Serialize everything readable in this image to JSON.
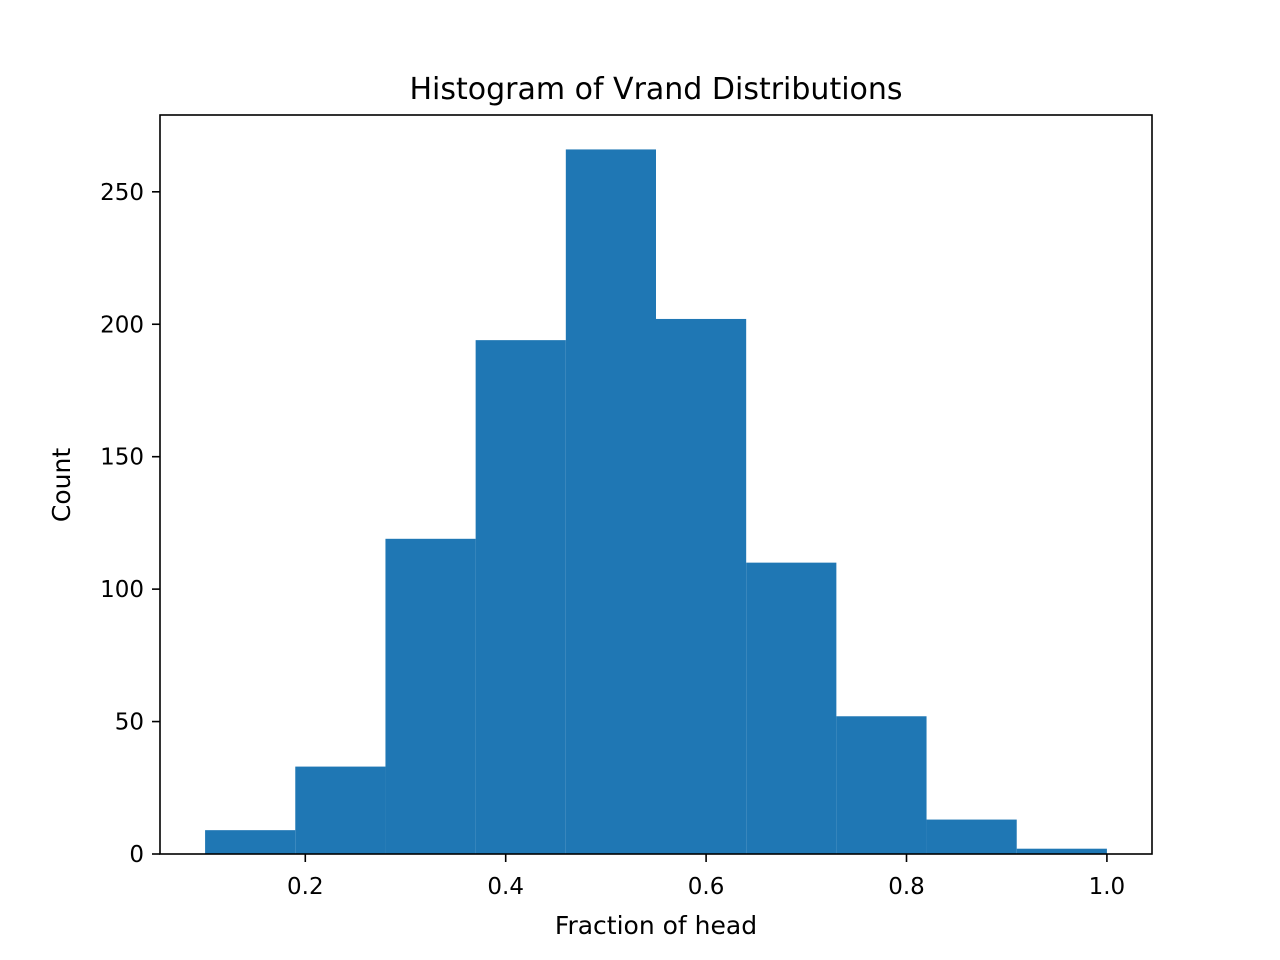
{
  "chart_data": {
    "type": "bar",
    "title": "Histogram of Vrand Distributions",
    "xlabel": "Fraction of head",
    "ylabel": "Count",
    "xlim": [
      0.055,
      1.045
    ],
    "ylim": [
      0,
      279
    ],
    "x_ticks": [
      "0.2",
      "0.4",
      "0.6",
      "0.8",
      "1.0"
    ],
    "x_tick_values": [
      0.2,
      0.4,
      0.6,
      0.8,
      1.0
    ],
    "y_ticks": [
      "0",
      "50",
      "100",
      "150",
      "200",
      "250"
    ],
    "y_tick_values": [
      0,
      50,
      100,
      150,
      200,
      250
    ],
    "bin_edges": [
      0.1,
      0.19,
      0.28,
      0.37,
      0.46,
      0.55,
      0.64,
      0.73,
      0.82,
      0.91,
      1.0
    ],
    "values": [
      9,
      33,
      119,
      194,
      266,
      202,
      110,
      52,
      13,
      2
    ],
    "bar_color": "#1f77b4",
    "grid": false,
    "legend": "none"
  }
}
